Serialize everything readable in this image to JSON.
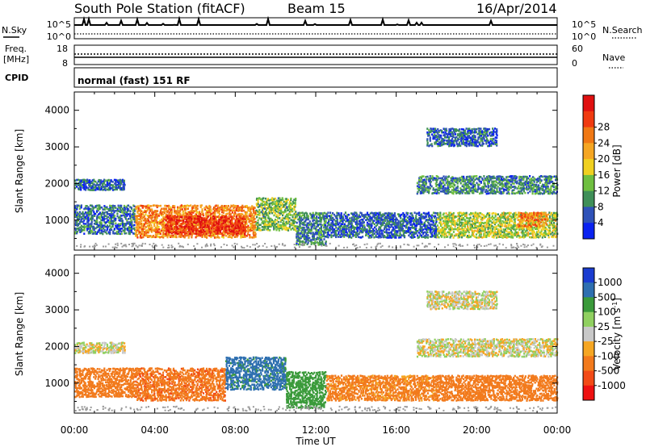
{
  "header": {
    "station": "South Pole Station (fitACF)",
    "beam": "Beam 15",
    "date": "16/Apr/2014"
  },
  "noise_panel": {
    "left_label": "N.Sky",
    "left_ticks": [
      "10^5",
      "10^0"
    ],
    "right_label": "N.Search",
    "right_ticks": [
      "10^5",
      "10^0"
    ]
  },
  "freq_panel": {
    "left_label_line1": "Freq.",
    "left_label_line2": "[MHz]",
    "left_ticks": [
      "18",
      "8"
    ],
    "right_label": "Nave",
    "right_ticks": [
      "60",
      "0"
    ]
  },
  "cpid_panel": {
    "label": "CPID",
    "value": "normal (fast) 151 RF"
  },
  "time_axis": {
    "label": "Time UT",
    "ticks": [
      "00:00",
      "04:00",
      "08:00",
      "12:00",
      "16:00",
      "20:00",
      "00:00"
    ]
  },
  "colors": {
    "power_scale": [
      "#0a22f0",
      "#2f52b8",
      "#3f8f58",
      "#6fbf40",
      "#f0d020",
      "#f5a623",
      "#f07814",
      "#f03a10",
      "#e01010"
    ],
    "velocity_scale": [
      "#ee1111",
      "#f24a16",
      "#f27a1c",
      "#f5a623",
      "#c8c8c8",
      "#90d060",
      "#3a9a3a",
      "#2e6fb0",
      "#1a3cd0"
    ]
  },
  "chart_data": [
    {
      "type": "heatmap",
      "title": "",
      "ylabel": "Slant Range [km]",
      "xlabel": "",
      "x_range_hours": [
        0,
        24
      ],
      "ylim": [
        180,
        4500
      ],
      "y_ticks": [
        1000,
        2000,
        3000,
        4000
      ],
      "colorbar": {
        "label": "Power [dB]",
        "ticks": [
          4,
          8,
          12,
          16,
          20,
          24,
          28
        ],
        "range": [
          0,
          32
        ]
      },
      "echo_regions": [
        {
          "t0": 0.0,
          "t1": 3.0,
          "r0": 600,
          "r1": 1400,
          "value": 7
        },
        {
          "t0": 0.0,
          "t1": 2.5,
          "r0": 1800,
          "r1": 2100,
          "value": 6
        },
        {
          "t0": 3.0,
          "t1": 9.0,
          "r0": 500,
          "r1": 1400,
          "value": 22
        },
        {
          "t0": 4.5,
          "t1": 8.5,
          "r0": 600,
          "r1": 1100,
          "value": 28
        },
        {
          "t0": 9.0,
          "t1": 11.0,
          "r0": 700,
          "r1": 1600,
          "value": 12
        },
        {
          "t0": 11.0,
          "t1": 12.5,
          "r0": 300,
          "r1": 1200,
          "value": 8
        },
        {
          "t0": 12.5,
          "t1": 18.0,
          "r0": 500,
          "r1": 1200,
          "value": 6
        },
        {
          "t0": 17.0,
          "t1": 24.0,
          "r0": 1700,
          "r1": 2200,
          "value": 8
        },
        {
          "t0": 18.0,
          "t1": 24.0,
          "r0": 500,
          "r1": 1200,
          "value": 14
        },
        {
          "t0": 22.0,
          "t1": 23.5,
          "r0": 800,
          "r1": 1200,
          "value": 22
        },
        {
          "t0": 17.5,
          "t1": 21.0,
          "r0": 3000,
          "r1": 3500,
          "value": 6
        }
      ]
    },
    {
      "type": "heatmap",
      "title": "",
      "ylabel": "Slant Range [km]",
      "xlabel": "Time UT",
      "x_range_hours": [
        0,
        24
      ],
      "ylim": [
        180,
        4500
      ],
      "y_ticks": [
        1000,
        2000,
        3000,
        4000
      ],
      "colorbar": {
        "label": "Velocity [m s^-1]",
        "ticks": [
          1000,
          500,
          100,
          25,
          -25,
          -100,
          -500,
          -1000
        ]
      },
      "echo_regions": [
        {
          "t0": 0.0,
          "t1": 3.0,
          "r0": 600,
          "r1": 1400,
          "value": -200
        },
        {
          "t0": 0.0,
          "t1": 2.5,
          "r0": 1800,
          "r1": 2100,
          "value": 0
        },
        {
          "t0": 3.0,
          "t1": 7.5,
          "r0": 500,
          "r1": 1400,
          "value": -400
        },
        {
          "t0": 7.5,
          "t1": 10.5,
          "r0": 800,
          "r1": 1700,
          "value": 700
        },
        {
          "t0": 10.5,
          "t1": 12.5,
          "r0": 300,
          "r1": 1300,
          "value": 200
        },
        {
          "t0": 12.5,
          "t1": 18.0,
          "r0": 500,
          "r1": 1200,
          "value": -150
        },
        {
          "t0": 17.0,
          "t1": 24.0,
          "r0": 1700,
          "r1": 2200,
          "value": 0
        },
        {
          "t0": 18.0,
          "t1": 24.0,
          "r0": 500,
          "r1": 1200,
          "value": -300
        },
        {
          "t0": 17.5,
          "t1": 21.0,
          "r0": 3000,
          "r1": 3500,
          "value": 0
        }
      ]
    }
  ]
}
